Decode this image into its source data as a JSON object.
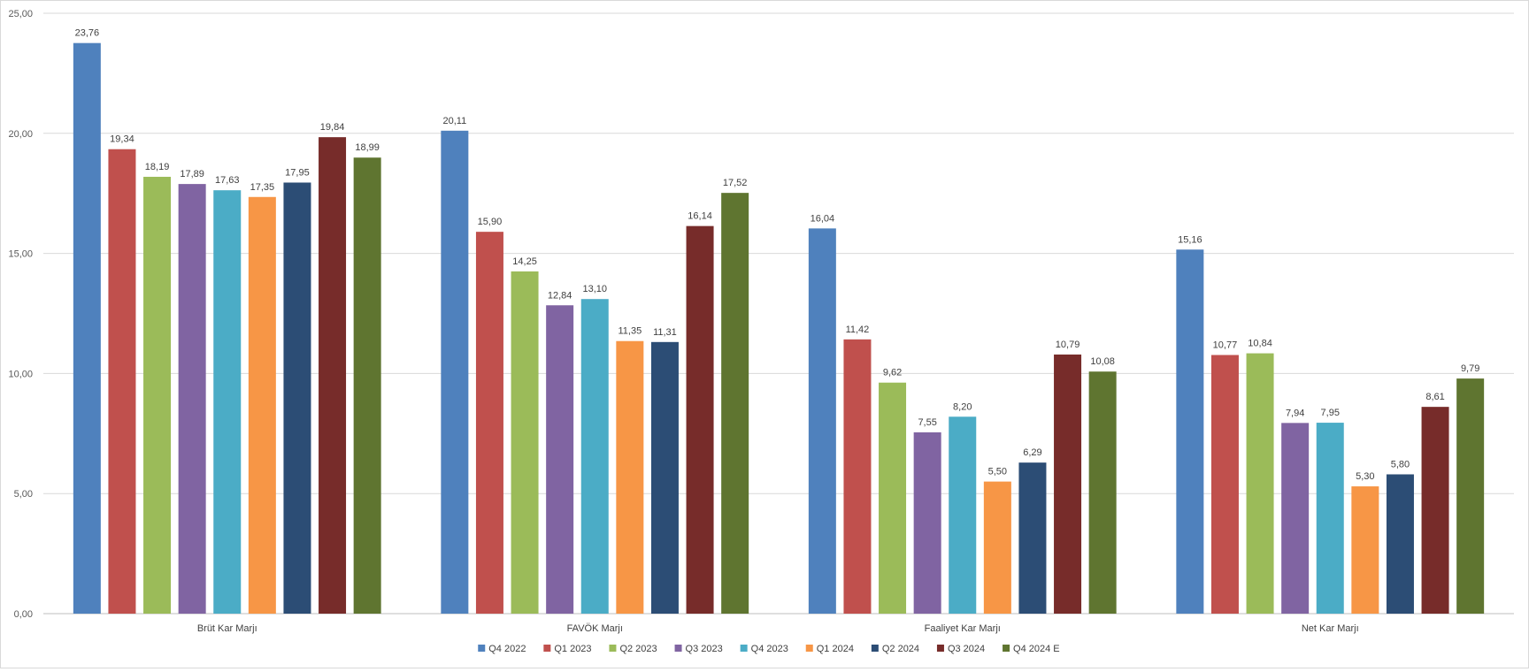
{
  "chart_data": {
    "type": "bar",
    "title": "",
    "xlabel": "",
    "ylabel": "",
    "ylim": [
      0,
      25
    ],
    "yticks": [
      "0,00",
      "5,00",
      "10,00",
      "15,00",
      "20,00",
      "25,00"
    ],
    "ytick_values": [
      0,
      5,
      10,
      15,
      20,
      25
    ],
    "grid": true,
    "legend_position": "bottom",
    "categories": [
      "Brüt Kar Marjı",
      "FAVÖK Marjı",
      "Faaliyet Kar Marjı",
      "Net Kar Marjı"
    ],
    "series": [
      {
        "name": "Q4 2022",
        "color": "#4F81BD",
        "values": [
          23.76,
          20.11,
          16.04,
          15.16
        ],
        "labels": [
          "23,76",
          "20,11",
          "16,04",
          "15,16"
        ]
      },
      {
        "name": "Q1 2023",
        "color": "#C0504D",
        "values": [
          19.34,
          15.9,
          11.42,
          10.77
        ],
        "labels": [
          "19,34",
          "15,90",
          "11,42",
          "10,77"
        ]
      },
      {
        "name": "Q2 2023",
        "color": "#9BBB59",
        "values": [
          18.19,
          14.25,
          9.62,
          10.84
        ],
        "labels": [
          "18,19",
          "14,25",
          "9,62",
          "10,84"
        ]
      },
      {
        "name": "Q3 2023",
        "color": "#8064A2",
        "values": [
          17.89,
          12.84,
          7.55,
          7.94
        ],
        "labels": [
          "17,89",
          "12,84",
          "7,55",
          "7,94"
        ]
      },
      {
        "name": "Q4 2023",
        "color": "#4BACC6",
        "values": [
          17.63,
          13.1,
          8.2,
          7.95
        ],
        "labels": [
          "17,63",
          "13,10",
          "8,20",
          "7,95"
        ]
      },
      {
        "name": "Q1 2024",
        "color": "#F79646",
        "values": [
          17.35,
          11.35,
          5.5,
          5.3
        ],
        "labels": [
          "17,35",
          "11,35",
          "5,50",
          "5,30"
        ]
      },
      {
        "name": "Q2 2024",
        "color": "#2C4D75",
        "values": [
          17.95,
          11.31,
          6.29,
          5.8
        ],
        "labels": [
          "17,95",
          "11,31",
          "6,29",
          "5,80"
        ]
      },
      {
        "name": "Q3 2024",
        "color": "#772C2A",
        "values": [
          19.84,
          16.14,
          10.79,
          8.61
        ],
        "labels": [
          "19,84",
          "16,14",
          "10,79",
          "8,61"
        ]
      },
      {
        "name": "Q4 2024 E",
        "color": "#5F7530",
        "values": [
          18.99,
          17.52,
          10.08,
          9.79
        ],
        "labels": [
          "18,99",
          "17,52",
          "10,08",
          "9,79"
        ]
      }
    ]
  }
}
